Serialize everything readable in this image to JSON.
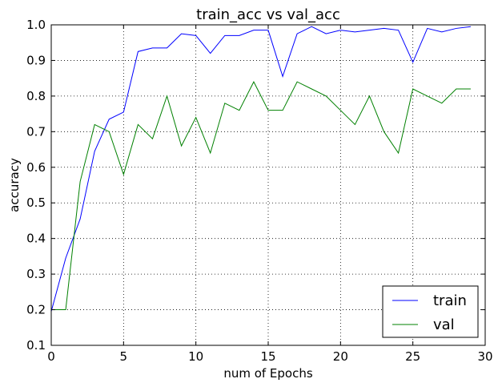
{
  "chart_data": {
    "type": "line",
    "title": "train_acc vs val_acc",
    "xlabel": "num of Epochs",
    "ylabel": "accuracy",
    "xlim": [
      0,
      30
    ],
    "ylim": [
      0.1,
      1.0
    ],
    "xticks": [
      "0",
      "5",
      "10",
      "15",
      "20",
      "25",
      "30"
    ],
    "yticks": [
      "0.1",
      "0.2",
      "0.3",
      "0.4",
      "0.5",
      "0.6",
      "0.7",
      "0.8",
      "0.9",
      "1.0"
    ],
    "grid": true,
    "legend_position": "lower right",
    "x": [
      0,
      1,
      2,
      3,
      4,
      5,
      6,
      7,
      8,
      9,
      10,
      11,
      12,
      13,
      14,
      15,
      16,
      17,
      18,
      19,
      20,
      21,
      22,
      23,
      24,
      25,
      26,
      27,
      28,
      29
    ],
    "series": [
      {
        "name": "train",
        "color": "#0000ff",
        "values": [
          0.195,
          0.345,
          0.455,
          0.645,
          0.735,
          0.755,
          0.925,
          0.935,
          0.935,
          0.975,
          0.97,
          0.92,
          0.97,
          0.97,
          0.985,
          0.985,
          0.855,
          0.975,
          0.995,
          0.975,
          0.985,
          0.98,
          0.985,
          0.99,
          0.985,
          0.895,
          0.99,
          0.98,
          0.99,
          0.995
        ]
      },
      {
        "name": "val",
        "color": "#008000",
        "values": [
          0.2,
          0.2,
          0.56,
          0.72,
          0.7,
          0.58,
          0.72,
          0.68,
          0.8,
          0.66,
          0.74,
          0.64,
          0.78,
          0.76,
          0.84,
          0.76,
          0.76,
          0.84,
          0.82,
          0.8,
          0.76,
          0.72,
          0.8,
          0.7,
          0.64,
          0.82,
          0.8,
          0.78,
          0.82,
          0.82
        ]
      }
    ]
  }
}
